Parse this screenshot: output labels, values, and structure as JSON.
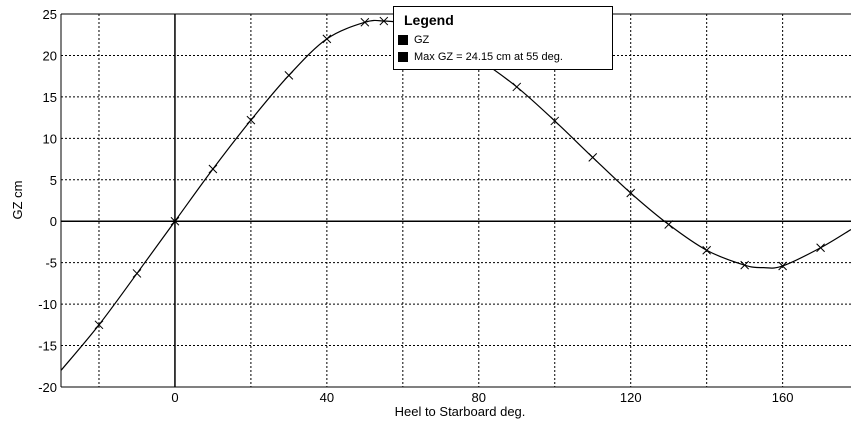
{
  "chart_data": {
    "type": "line",
    "xlabel": "Heel to Starboard   deg.",
    "ylabel": "GZ  cm",
    "xlim": [
      -30,
      178
    ],
    "ylim": [
      -20,
      25
    ],
    "x_ticks": [
      0,
      40,
      80,
      120,
      160
    ],
    "y_ticks": [
      25,
      20,
      15,
      10,
      5,
      0,
      -5,
      -10,
      -15,
      -20
    ],
    "grid": true,
    "legend_position": "top-center",
    "series": [
      {
        "name": "GZ",
        "x": [
          -30,
          -20,
          -10,
          0,
          10,
          20,
          30,
          40,
          50,
          55,
          60,
          70,
          80,
          90,
          100,
          110,
          120,
          130,
          140,
          150,
          155,
          160,
          170,
          178
        ],
        "y": [
          -18.0,
          -12.5,
          -6.3,
          0,
          6.3,
          12.2,
          17.6,
          22.0,
          24.0,
          24.15,
          23.8,
          22.0,
          19.5,
          16.2,
          12.1,
          7.7,
          3.4,
          -0.4,
          -3.5,
          -5.3,
          -5.6,
          -5.4,
          -3.2,
          -1.0
        ],
        "markers_x": [
          -20,
          -10,
          0,
          10,
          20,
          30,
          40,
          50,
          55,
          90,
          100,
          110,
          120,
          130,
          140,
          150,
          160,
          170
        ],
        "markers_y": [
          -12.5,
          -6.3,
          0,
          6.3,
          12.2,
          17.6,
          22.0,
          24.0,
          24.15,
          16.2,
          12.1,
          7.7,
          3.4,
          -0.4,
          -3.5,
          -5.3,
          -5.4,
          -3.2
        ]
      }
    ],
    "legend": {
      "title": "Legend",
      "entries": [
        "GZ",
        "Max GZ = 24.15 cm at 55 deg."
      ]
    }
  },
  "colors": {
    "line": "#000000",
    "grid": "#000000",
    "background": "#ffffff"
  }
}
